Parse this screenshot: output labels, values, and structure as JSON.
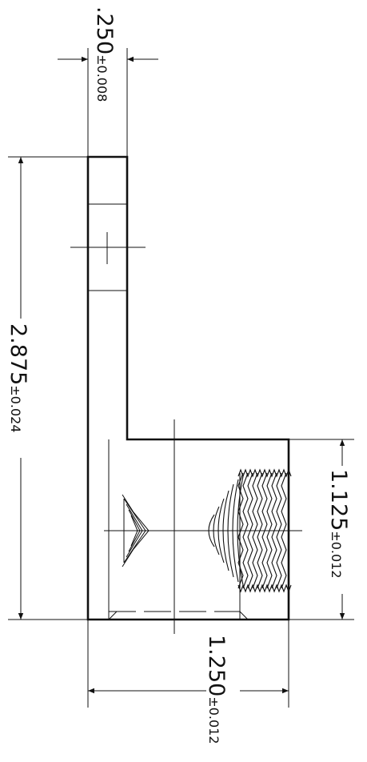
{
  "dimensions": {
    "top_width": {
      "value": ".250",
      "tolerance": "±0.008"
    },
    "overall_height": {
      "value": "2.875",
      "tolerance": "±0.024"
    },
    "block_height": {
      "value": "1.125",
      "tolerance": "±0.012"
    },
    "bottom_width": {
      "value": "1.250",
      "tolerance": "±0.012"
    }
  },
  "colors": {
    "line": "#111111",
    "background": "#ffffff"
  }
}
